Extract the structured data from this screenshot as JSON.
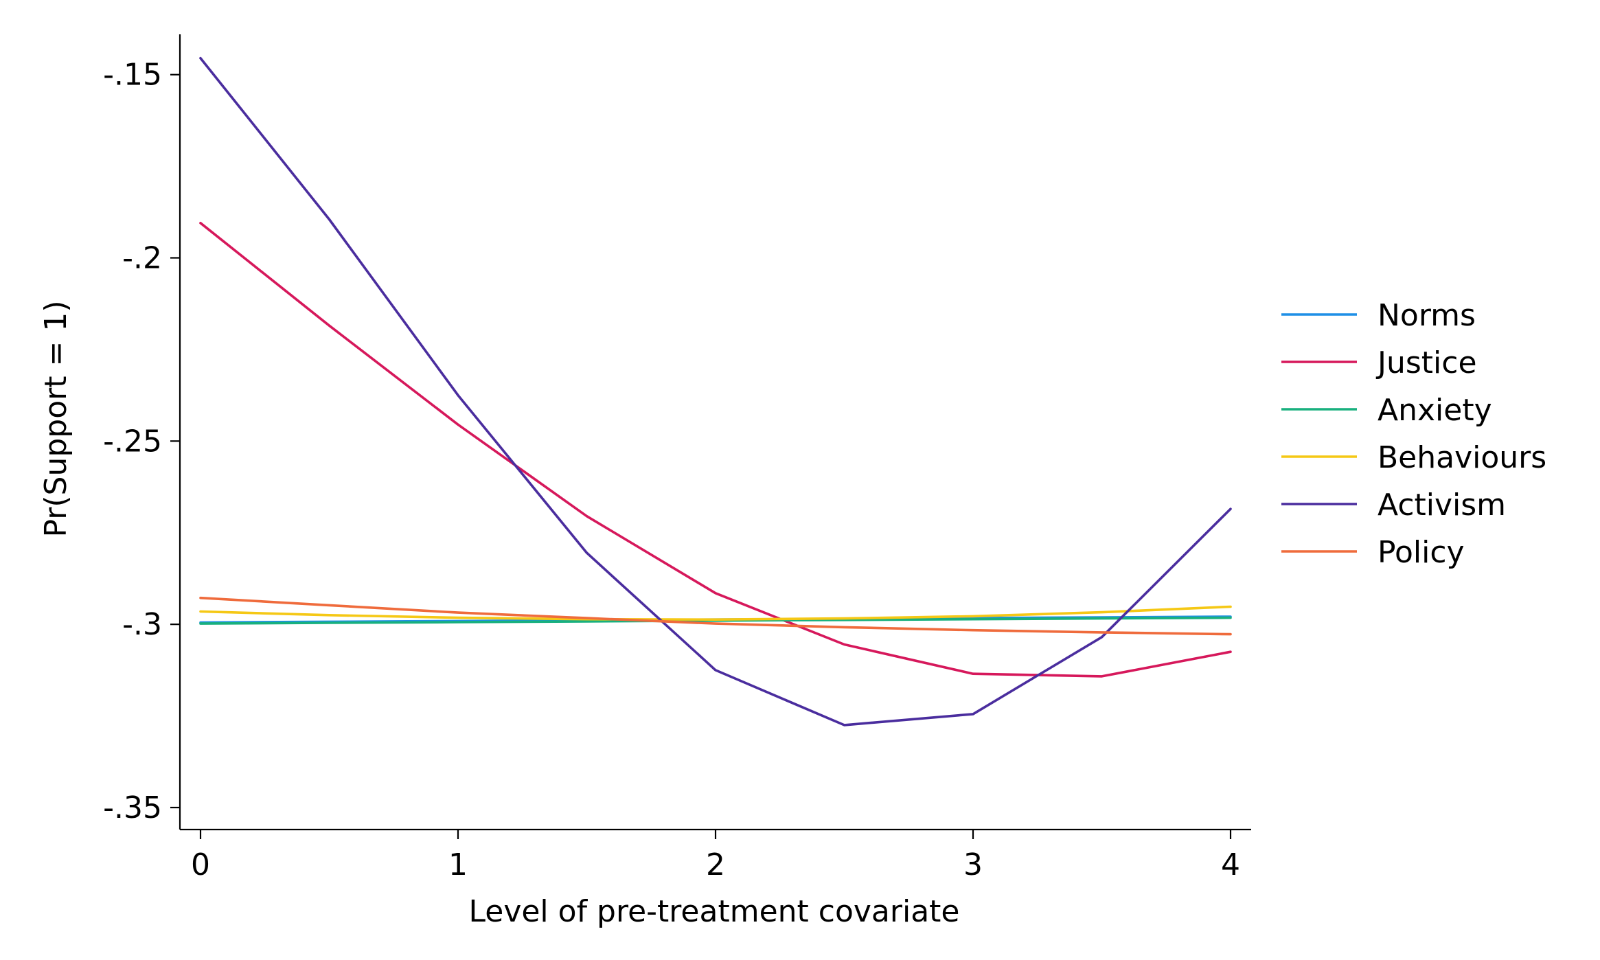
{
  "chart_data": {
    "type": "line",
    "title": "",
    "xlabel": "Level of pre-treatment covariate",
    "ylabel": "Pr(Support = 1)",
    "xlim": [
      -0.08,
      4.08
    ],
    "ylim": [
      -0.356,
      -0.139
    ],
    "x_ticks": [
      0,
      1,
      2,
      3,
      4
    ],
    "x_tick_labels": [
      "0",
      "1",
      "2",
      "3",
      "4"
    ],
    "y_ticks": [
      -0.15,
      -0.2,
      -0.25,
      -0.3,
      -0.35
    ],
    "y_tick_labels": [
      "-.15",
      "-.2",
      "-.25",
      "-.3",
      "-.35"
    ],
    "grid": false,
    "legend_position": "right",
    "x": [
      0,
      0.5,
      1,
      1.5,
      2,
      2.5,
      3,
      3.5,
      4
    ],
    "series": [
      {
        "name": "Norms",
        "color": "#1f8fe6",
        "values": [
          -0.2995,
          -0.2993,
          -0.2991,
          -0.2989,
          -0.2987,
          -0.2985,
          -0.2983,
          -0.2981,
          -0.2979
        ]
      },
      {
        "name": "Justice",
        "color": "#d6185b",
        "values": [
          -0.1905,
          -0.2185,
          -0.2455,
          -0.2705,
          -0.2915,
          -0.3055,
          -0.3135,
          -0.3142,
          -0.3075
        ]
      },
      {
        "name": "Anxiety",
        "color": "#18b07e",
        "values": [
          -0.2998,
          -0.2996,
          -0.2994,
          -0.2992,
          -0.299,
          -0.2988,
          -0.2986,
          -0.2984,
          -0.2982
        ]
      },
      {
        "name": "Behaviours",
        "color": "#f5c815",
        "values": [
          -0.2965,
          -0.2975,
          -0.2982,
          -0.2986,
          -0.2987,
          -0.2984,
          -0.2978,
          -0.2967,
          -0.2952
        ]
      },
      {
        "name": "Activism",
        "color": "#4a2d9e",
        "values": [
          -0.1455,
          -0.1895,
          -0.2375,
          -0.2805,
          -0.3125,
          -0.3275,
          -0.3245,
          -0.3035,
          -0.2685
        ]
      },
      {
        "name": "Policy",
        "color": "#ef6b3c",
        "values": [
          -0.2928,
          -0.2948,
          -0.2968,
          -0.2983,
          -0.2998,
          -0.3008,
          -0.3016,
          -0.3022,
          -0.3027
        ]
      }
    ]
  }
}
